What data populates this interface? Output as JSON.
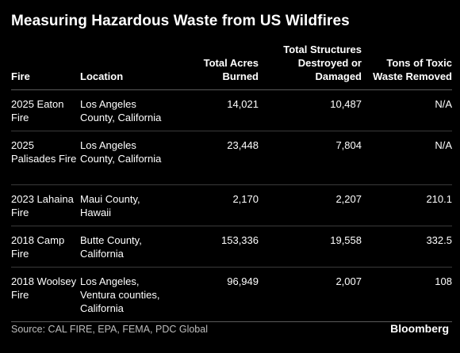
{
  "title": "Measuring Hazardous Waste from US Wildfires",
  "chart_data": {
    "type": "table",
    "title": "Measuring Hazardous Waste from US Wildfires",
    "columns": [
      "Fire",
      "Location",
      "Total Acres Burned",
      "Total Structures Destroyed or Damaged",
      "Tons of Toxic Waste Removed"
    ],
    "rows": [
      [
        "2025 Eaton Fire",
        "Los Angeles County, California",
        "14,021",
        "10,487",
        "N/A"
      ],
      [
        "2025 Palisades Fire",
        "Los Angeles County, California",
        "23,448",
        "7,804",
        "N/A"
      ],
      [
        "2023 Lahaina Fire",
        "Maui County, Hawaii",
        "2,170",
        "2,207",
        "210.1"
      ],
      [
        "2018 Camp Fire",
        "Butte County, California",
        "153,336",
        "19,558",
        "332.5"
      ],
      [
        "2018 Woolsey Fire",
        "Los Angeles, Ventura counties, California",
        "96,949",
        "2,007",
        "108"
      ]
    ]
  },
  "source": "Source: CAL FIRE, EPA, FEMA, PDC Global",
  "brand": "Bloomberg",
  "colors": {
    "background": "#000000",
    "text": "#ffffff",
    "source_text": "#bdbdbd",
    "rule": "#3a3a3a"
  }
}
